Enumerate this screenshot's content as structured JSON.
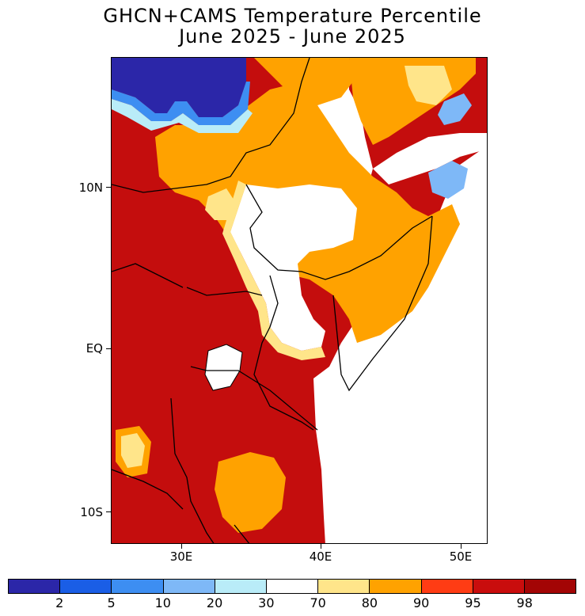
{
  "title": "GHCN+CAMS Temperature Percentile",
  "subtitle": "June 2025 - June 2025",
  "lat_labels": [
    "10N",
    "EQ",
    "10S"
  ],
  "lon_labels": [
    "30E",
    "40E",
    "50E"
  ],
  "colorbar": {
    "colors": [
      "#2b26a8",
      "#1a5ee6",
      "#3d8ef2",
      "#7eb8f7",
      "#b9ecf8",
      "#ffffff",
      "#ffe58a",
      "#ffa200",
      "#ff3c14",
      "#c90d0d",
      "#a30505"
    ],
    "labels": [
      "2",
      "5",
      "10",
      "20",
      "30",
      "70",
      "80",
      "90",
      "95",
      "98"
    ]
  },
  "map_regions": [
    {
      "name": "dark-red-98",
      "color": "#c40d0d"
    },
    {
      "name": "orange-90",
      "color": "#ffa200"
    },
    {
      "name": "yellow-80",
      "color": "#ffe58a"
    },
    {
      "name": "white-70",
      "color": "#ffffff"
    },
    {
      "name": "dark-blue-2",
      "color": "#2b26a8"
    },
    {
      "name": "light-blue-20",
      "color": "#7eb8f7"
    }
  ]
}
